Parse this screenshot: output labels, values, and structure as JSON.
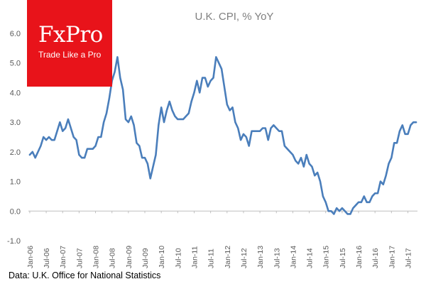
{
  "brand": {
    "name": "FxPro",
    "tagline": "Trade Like a Pro",
    "color": "#e8131a"
  },
  "source": "Data: U.K. Office for National Statistics",
  "chart_data": {
    "type": "line",
    "title": "U.K. CPI, % YoY",
    "xlabel": "",
    "ylabel": "",
    "ylim": [
      -1.0,
      6.0
    ],
    "y_ticks": [
      "6.0",
      "5.0",
      "4.0",
      "3.0",
      "2.0",
      "1.0",
      "0.0",
      "-1.0"
    ],
    "y_tick_values": [
      6,
      5,
      4,
      3,
      2,
      1,
      0,
      -1
    ],
    "x_tick_labels": [
      "Jan-06",
      "Jul-06",
      "Jan-07",
      "Jul-07",
      "Jan-08",
      "Jul-08",
      "Jan-09",
      "Jul-09",
      "Jan-10",
      "Jul-10",
      "Jan-11",
      "Jul-11",
      "Jan-12",
      "Jul-12",
      "Jan-13",
      "Jul-13",
      "Jan-14",
      "Jul-14",
      "Jan-15",
      "Jul-15",
      "Jan-16",
      "Jul-16",
      "Jan-17",
      "Jul-17"
    ],
    "x_start": "2006-01",
    "x_end": "2017-10",
    "grid": false,
    "series": [
      {
        "name": "U.K. CPI, % YoY",
        "color": "#4a7ebb",
        "values": [
          1.9,
          2.0,
          1.8,
          2.0,
          2.2,
          2.5,
          2.4,
          2.5,
          2.4,
          2.4,
          2.7,
          3.0,
          2.7,
          2.8,
          3.1,
          2.8,
          2.5,
          2.4,
          1.9,
          1.8,
          1.8,
          2.1,
          2.1,
          2.1,
          2.2,
          2.5,
          2.5,
          3.0,
          3.3,
          3.8,
          4.4,
          4.7,
          5.2,
          4.5,
          4.1,
          3.1,
          3.0,
          3.2,
          2.9,
          2.3,
          2.2,
          1.8,
          1.8,
          1.6,
          1.1,
          1.5,
          1.9,
          2.9,
          3.5,
          3.0,
          3.4,
          3.7,
          3.4,
          3.2,
          3.1,
          3.1,
          3.1,
          3.2,
          3.3,
          3.7,
          4.0,
          4.4,
          4.0,
          4.5,
          4.5,
          4.2,
          4.4,
          4.5,
          5.2,
          5.0,
          4.8,
          4.2,
          3.6,
          3.4,
          3.5,
          3.0,
          2.8,
          2.4,
          2.6,
          2.5,
          2.2,
          2.7,
          2.7,
          2.7,
          2.7,
          2.8,
          2.8,
          2.4,
          2.8,
          2.9,
          2.8,
          2.7,
          2.7,
          2.2,
          2.1,
          2.0,
          1.9,
          1.7,
          1.6,
          1.8,
          1.5,
          1.9,
          1.6,
          1.5,
          1.2,
          1.3,
          1.0,
          0.5,
          0.3,
          0.0,
          0.0,
          -0.1,
          0.1,
          0.0,
          0.1,
          0.0,
          -0.1,
          -0.1,
          0.1,
          0.2,
          0.3,
          0.3,
          0.5,
          0.3,
          0.3,
          0.5,
          0.6,
          0.6,
          1.0,
          0.9,
          1.2,
          1.6,
          1.8,
          2.3,
          2.3,
          2.7,
          2.9,
          2.6,
          2.6,
          2.9,
          3.0,
          3.0
        ]
      }
    ]
  }
}
